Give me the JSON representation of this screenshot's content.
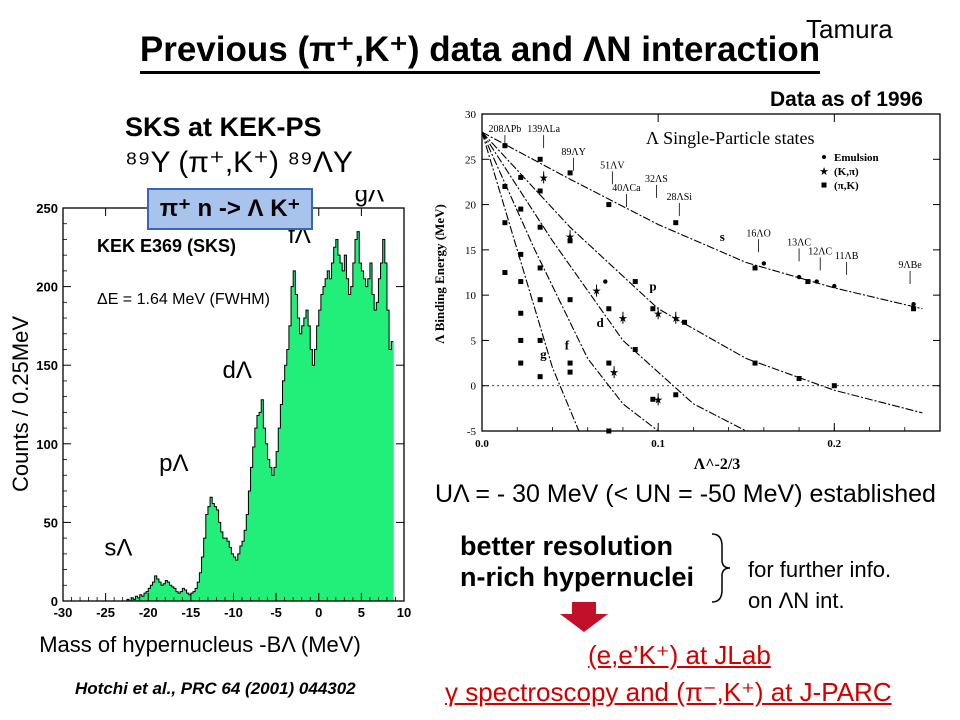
{
  "header": {
    "corner_label": "Tamura",
    "title": "Previous (π⁺,K⁺) data and ΛN interaction"
  },
  "left_panel": {
    "facility": "SKS at KEK-PS",
    "reaction": "⁸⁹Y (π⁺,K⁺) ⁸⁹ΛY",
    "annotation": "π⁺ n -> Λ K⁺",
    "reference": "Hotchi et al., PRC 64 (2001) 044302"
  },
  "right_panel": {
    "data_note": "Data as of 1996",
    "u_statement": "UΛ = - 30 MeV  (< UN = -50 MeV) established",
    "better_lines": [
      "better resolution",
      "n-rich hypernuclei"
    ],
    "further_lines": [
      "for further info.",
      "on ΛN int."
    ],
    "jlab_line": "(e,e’K⁺) at JLab",
    "jparc_line": "γ spectroscopy and (π⁻,K⁺) at J-PARC"
  },
  "colors": {
    "histogram_fill": "#22ee7a",
    "annotation_box": "#a9c4ec",
    "highlight_red": "#d00000",
    "arrow_red": "#c0102a"
  },
  "chart_data": [
    {
      "type": "bar",
      "experiment_label": "KEK E369 (SKS)",
      "resolution_label": "ΔE = 1.64 MeV (FWHM)",
      "xlabel": "Mass of hypernucleus  -BΛ (MeV)",
      "ylabel": "Counts / 0.25MeV",
      "xlim": [
        -30,
        10
      ],
      "ylim": [
        0,
        250
      ],
      "xticks": [
        -30,
        -25,
        -20,
        -15,
        -10,
        -5,
        0,
        5,
        10
      ],
      "yticks": [
        0,
        50,
        100,
        150,
        200,
        250
      ],
      "peaks": [
        {
          "label": "sΛ",
          "x": -23.5,
          "y": 15
        },
        {
          "label": "pΛ",
          "x": -17,
          "y": 66
        },
        {
          "label": "dΛ",
          "x": -9.8,
          "y": 128
        },
        {
          "label": "fΛ",
          "x": -2.5,
          "y": 210
        },
        {
          "label": "gΛ",
          "x": 5,
          "y": 230
        }
      ],
      "bin_width": 0.25,
      "bin_start": -30,
      "counts": [
        0,
        0,
        0,
        0,
        0,
        0,
        0,
        0,
        0,
        0,
        0,
        0,
        0,
        0,
        0,
        0,
        0,
        0,
        0,
        0,
        0,
        0,
        0,
        0,
        0,
        0,
        0,
        0,
        0,
        0,
        1,
        0,
        2,
        1,
        3,
        2,
        4,
        3,
        5,
        6,
        8,
        10,
        12,
        16,
        14,
        12,
        10,
        11,
        13,
        12,
        10,
        9,
        8,
        6,
        5,
        6,
        8,
        7,
        5,
        4,
        5,
        6,
        8,
        12,
        18,
        28,
        40,
        55,
        60,
        66,
        62,
        60,
        58,
        50,
        44,
        40,
        40,
        38,
        34,
        30,
        28,
        26,
        30,
        35,
        38,
        45,
        55,
        70,
        85,
        98,
        110,
        118,
        120,
        128,
        110,
        100,
        90,
        85,
        80,
        85,
        95,
        110,
        125,
        140,
        150,
        160,
        175,
        200,
        210,
        195,
        180,
        170,
        175,
        180,
        185,
        175,
        160,
        150,
        160,
        175,
        185,
        195,
        200,
        205,
        210,
        205,
        215,
        225,
        230,
        220,
        215,
        210,
        220,
        205,
        195,
        200,
        215,
        230,
        235,
        215,
        210,
        205,
        200,
        205,
        215,
        195,
        185,
        190,
        205,
        215,
        230,
        215,
        185,
        160,
        165
      ]
    },
    {
      "type": "scatter",
      "title": "Λ Single-Particle states",
      "xlabel": "Λ^-2/3",
      "ylabel": "Λ Binding Energy  (MeV)",
      "xlim": [
        0,
        0.26
      ],
      "ylim": [
        -5,
        30
      ],
      "xticks": [
        0.0,
        0.1,
        0.2
      ],
      "xtick_labels": [
        "0.0",
        "0.1",
        "0.2"
      ],
      "yticks": [
        -5,
        0,
        5,
        10,
        15,
        20,
        25,
        30
      ],
      "legend": [
        "Emulsion",
        "(K,π)",
        "(π,K)"
      ],
      "legend_position": "top-right",
      "shell_labels": [
        {
          "label": "s",
          "x": 0.135,
          "y": 16
        },
        {
          "label": "p",
          "x": 0.095,
          "y": 10.5
        },
        {
          "label": "d",
          "x": 0.065,
          "y": 6.5
        },
        {
          "label": "f",
          "x": 0.047,
          "y": 4
        },
        {
          "label": "g",
          "x": 0.033,
          "y": 3
        }
      ],
      "nucleus_labels": [
        {
          "label": "208ΛPb",
          "x": 0.013,
          "y": 28
        },
        {
          "label": "139ΛLa",
          "x": 0.035,
          "y": 28
        },
        {
          "label": "89ΛY",
          "x": 0.052,
          "y": 25.5
        },
        {
          "label": "51ΛV",
          "x": 0.074,
          "y": 24
        },
        {
          "label": "40ΛCa",
          "x": 0.082,
          "y": 21.5
        },
        {
          "label": "32ΛS",
          "x": 0.099,
          "y": 22.5
        },
        {
          "label": "28ΛSi",
          "x": 0.112,
          "y": 20.5
        },
        {
          "label": "16ΛO",
          "x": 0.157,
          "y": 16.5
        },
        {
          "label": "13ΛC",
          "x": 0.18,
          "y": 15.5
        },
        {
          "label": "12ΛC",
          "x": 0.192,
          "y": 14.5
        },
        {
          "label": "11ΛB",
          "x": 0.207,
          "y": 14
        },
        {
          "label": "9ΛBe",
          "x": 0.243,
          "y": 13
        }
      ],
      "curves": [
        {
          "shell": "s",
          "points": [
            [
              0,
              28
            ],
            [
              0.05,
              22.8
            ],
            [
              0.1,
              17.8
            ],
            [
              0.15,
              13.6
            ],
            [
              0.2,
              10.8
            ],
            [
              0.25,
              8.5
            ]
          ]
        },
        {
          "shell": "p",
          "points": [
            [
              0,
              28
            ],
            [
              0.05,
              17.5
            ],
            [
              0.1,
              8.5
            ],
            [
              0.15,
              3
            ],
            [
              0.2,
              -0.5
            ],
            [
              0.25,
              -3
            ]
          ]
        },
        {
          "shell": "d",
          "points": [
            [
              0,
              28
            ],
            [
              0.04,
              16
            ],
            [
              0.08,
              5
            ],
            [
              0.12,
              -2
            ],
            [
              0.15,
              -5.5
            ]
          ]
        },
        {
          "shell": "f",
          "points": [
            [
              0,
              28
            ],
            [
              0.03,
              15
            ],
            [
              0.06,
              3
            ],
            [
              0.08,
              -2
            ],
            [
              0.1,
              -6
            ]
          ]
        },
        {
          "shell": "g",
          "points": [
            [
              0,
              28
            ],
            [
              0.02,
              15
            ],
            [
              0.04,
              2
            ],
            [
              0.055,
              -5
            ]
          ]
        }
      ],
      "series": [
        {
          "name": "Emulsion",
          "points": [
            [
              0.07,
              11.5
            ],
            [
              0.16,
              13.5
            ],
            [
              0.18,
              12
            ],
            [
              0.19,
              11.5
            ],
            [
              0.2,
              11
            ],
            [
              0.245,
              9
            ]
          ]
        },
        {
          "name": "(K,π)",
          "points": [
            [
              0.035,
              23
            ],
            [
              0.05,
              16.5
            ],
            [
              0.065,
              10.5
            ],
            [
              0.08,
              7.5
            ],
            [
              0.1,
              8
            ],
            [
              0.11,
              7.5
            ],
            [
              0.075,
              1.5
            ],
            [
              0.1,
              -1.5
            ]
          ]
        },
        {
          "name": "(π,K)",
          "points": [
            [
              0.013,
              26.5
            ],
            [
              0.013,
              22
            ],
            [
              0.013,
              18
            ],
            [
              0.013,
              12.5
            ],
            [
              0.022,
              23
            ],
            [
              0.022,
              19.5
            ],
            [
              0.022,
              14.5
            ],
            [
              0.022,
              11.5
            ],
            [
              0.022,
              8
            ],
            [
              0.022,
              5
            ],
            [
              0.022,
              2.5
            ],
            [
              0.033,
              25
            ],
            [
              0.033,
              21.5
            ],
            [
              0.033,
              17.5
            ],
            [
              0.033,
              13
            ],
            [
              0.033,
              9.5
            ],
            [
              0.033,
              5
            ],
            [
              0.033,
              1
            ],
            [
              0.05,
              23.5
            ],
            [
              0.05,
              16
            ],
            [
              0.05,
              9.5
            ],
            [
              0.05,
              2.5
            ],
            [
              0.05,
              1.5
            ],
            [
              0.072,
              20
            ],
            [
              0.072,
              8.5
            ],
            [
              0.072,
              2.5
            ],
            [
              0.072,
              -5
            ],
            [
              0.087,
              11.5
            ],
            [
              0.087,
              4
            ],
            [
              0.097,
              8.5
            ],
            [
              0.097,
              -1.5
            ],
            [
              0.11,
              18
            ],
            [
              0.11,
              -1
            ],
            [
              0.115,
              7
            ],
            [
              0.155,
              13
            ],
            [
              0.155,
              2.5
            ],
            [
              0.18,
              0.8
            ],
            [
              0.185,
              11.5
            ],
            [
              0.2,
              0
            ],
            [
              0.245,
              8.5
            ]
          ]
        }
      ]
    }
  ]
}
